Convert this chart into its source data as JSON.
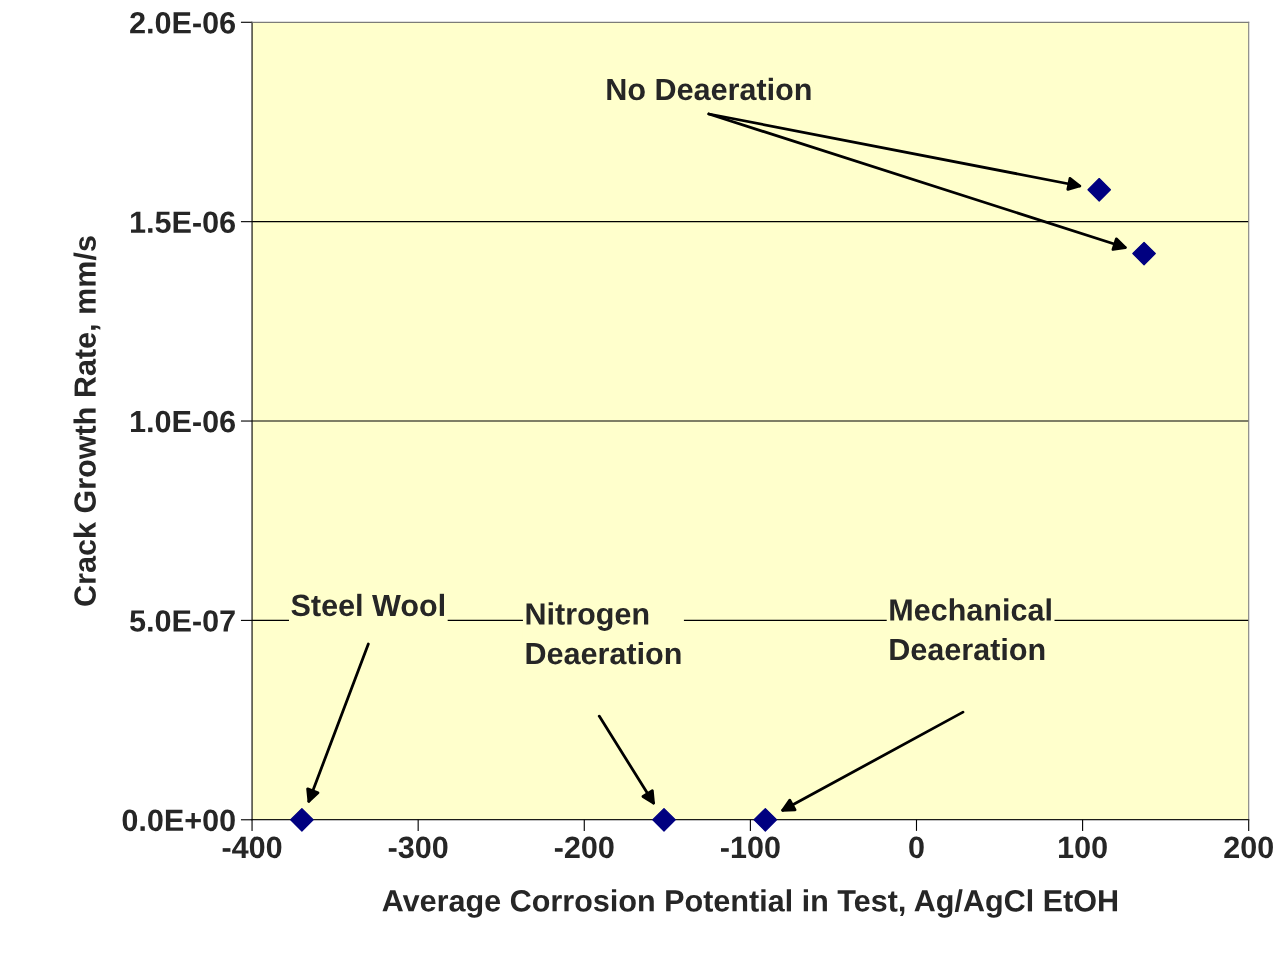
{
  "chart_data": {
    "type": "scatter",
    "xlabel": "Average Corrosion Potential in Test, Ag/AgCl EtOH",
    "ylabel": "Crack Growth Rate, mm/s",
    "series": [
      {
        "color": "#000080",
        "x": [
          110,
          137,
          -370,
          -152,
          -91
        ],
        "values": [
          1.58e-06,
          1.42e-06,
          0,
          0,
          0
        ]
      }
    ],
    "marker": "diamond",
    "xlim": [
      -400,
      200
    ],
    "xticks": [
      -400,
      -300,
      -200,
      -100,
      0,
      100,
      200
    ],
    "ylim": [
      0,
      2e-06
    ],
    "yticks": [
      {
        "value": 0,
        "label": "0.0E+00"
      },
      {
        "value": 5e-07,
        "label": "5.0E-07"
      },
      {
        "value": 1e-06,
        "label": "1.0E-06"
      },
      {
        "value": 1.5e-06,
        "label": "1.5E-06"
      },
      {
        "value": 2e-06,
        "label": "2.0E-06"
      }
    ],
    "grid": "y",
    "annotations": [
      "No Deaeration",
      "Steel Wool",
      "Nitrogen\nDeaeration",
      "Mechanical\nDeaeration"
    ]
  }
}
